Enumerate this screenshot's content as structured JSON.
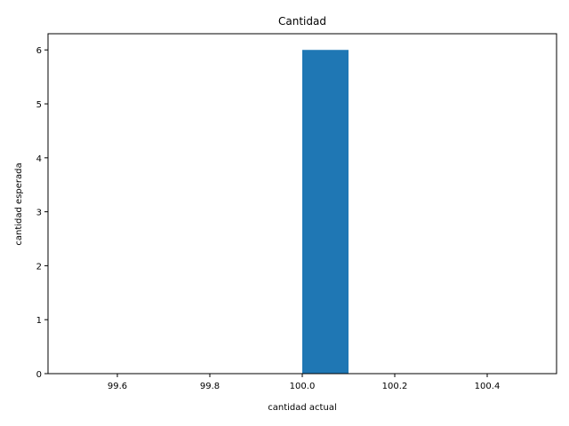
{
  "chart_data": {
    "type": "bar",
    "title": "Cantidad",
    "xlabel": "cantidad actual",
    "ylabel": "cantidad esperada",
    "xlim": [
      99.45,
      100.55
    ],
    "ylim": [
      0,
      6.3
    ],
    "x_ticks": [
      "99.6",
      "99.8",
      "100.0",
      "100.2",
      "100.4"
    ],
    "y_ticks": [
      "0",
      "1",
      "2",
      "3",
      "4",
      "5",
      "6"
    ],
    "bars": [
      {
        "x_start": 100.0,
        "x_end": 100.1,
        "value": 6
      }
    ],
    "bar_color": "#1f77b4",
    "grid": false,
    "legend": "none"
  }
}
